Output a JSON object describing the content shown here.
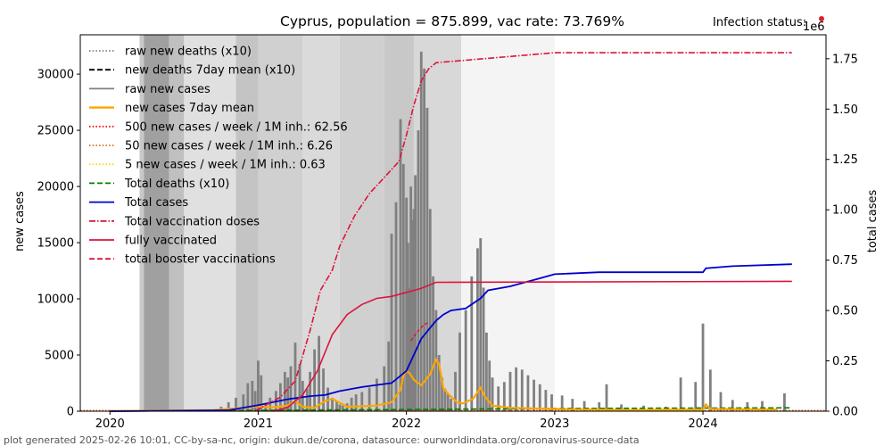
{
  "chart_data": {
    "type": "bar+line",
    "title": "Cyprus, population = 875.899, vac rate: 73.769%",
    "status_label": "Infection status:",
    "status_color": "#e0202c",
    "right_axis_multiplier": "1e6",
    "xlabel": "",
    "ylabel_left": "new cases",
    "ylabel_right": "total cases",
    "x_ticks": [
      "2020",
      "2021",
      "2022",
      "2023",
      "2024"
    ],
    "xlim": [
      2019.8,
      2024.83
    ],
    "ylim_left": [
      0,
      33500
    ],
    "ylim_right": [
      0,
      1.8688
    ],
    "y_ticks_left": [
      "0",
      "5000",
      "10000",
      "15000",
      "20000",
      "25000",
      "30000"
    ],
    "y_ticks_right": [
      "0.00",
      "0.25",
      "0.50",
      "0.75",
      "1.00",
      "1.25",
      "1.50",
      "1.75"
    ],
    "legend_position": "upper-left",
    "legend": [
      {
        "label": "raw new deaths (x10)",
        "color": "#808080",
        "style": "dotted"
      },
      {
        "label": "new deaths 7day mean (x10)",
        "color": "#000000",
        "style": "dashed"
      },
      {
        "label": "raw new cases",
        "color": "#808080",
        "style": "solid"
      },
      {
        "label": "new cases 7day mean",
        "color": "#ffa500",
        "style": "solid-thick"
      },
      {
        "label": "500 new cases / week / 1M inh.: 62.56",
        "color": "#ff0000",
        "style": "dotted"
      },
      {
        "label": "50 new cases / week / 1M inh.: 6.26",
        "color": "#d2691e",
        "style": "dotted"
      },
      {
        "label": "5 new cases / week / 1M inh.: 0.63",
        "color": "#ffd700",
        "style": "dotted"
      },
      {
        "label": "Total deaths (x10)",
        "color": "#008000",
        "style": "dashed"
      },
      {
        "label": "Total cases",
        "color": "#0000cd",
        "style": "solid"
      },
      {
        "label": "Total vaccination doses",
        "color": "#dc143c",
        "style": "dashdot"
      },
      {
        "label": "fully vaccinated",
        "color": "#dc143c",
        "style": "solid"
      },
      {
        "label": "total booster vaccinations",
        "color": "#dc143c",
        "style": "dashed"
      }
    ],
    "weekly_new_cases_bars": {
      "x": [
        2020.75,
        2020.8,
        2020.85,
        2020.9,
        2020.93,
        2020.96,
        2020.98,
        2021.0,
        2021.02,
        2021.05,
        2021.08,
        2021.12,
        2021.15,
        2021.18,
        2021.2,
        2021.22,
        2021.25,
        2021.28,
        2021.3,
        2021.33,
        2021.35,
        2021.38,
        2021.41,
        2021.44,
        2021.47,
        2021.5,
        2021.53,
        2021.55,
        2021.57,
        2021.6,
        2021.63,
        2021.66,
        2021.7,
        2021.75,
        2021.8,
        2021.85,
        2021.88,
        2021.9,
        2021.93,
        2021.96,
        2021.98,
        2022.0,
        2022.01,
        2022.02,
        2022.03,
        2022.04,
        2022.05,
        2022.06,
        2022.08,
        2022.1,
        2022.12,
        2022.14,
        2022.16,
        2022.18,
        2022.2,
        2022.22,
        2022.24,
        2022.26,
        2022.28,
        2022.3,
        2022.33,
        2022.36,
        2022.4,
        2022.44,
        2022.48,
        2022.5,
        2022.52,
        2022.54,
        2022.56,
        2022.58,
        2022.62,
        2022.66,
        2022.7,
        2022.74,
        2022.78,
        2022.82,
        2022.86,
        2022.9,
        2022.94,
        2022.98,
        2023.05,
        2023.12,
        2023.2,
        2023.3,
        2023.35,
        2023.45,
        2023.6,
        2023.75,
        2023.85,
        2023.95,
        2024.0,
        2024.05,
        2024.12,
        2024.2,
        2024.3,
        2024.4,
        2024.55
      ],
      "values": [
        400,
        800,
        1200,
        1500,
        2500,
        2700,
        1800,
        4500,
        3200,
        700,
        1200,
        1800,
        2500,
        3500,
        3000,
        4000,
        6100,
        4200,
        2700,
        2000,
        3500,
        5500,
        6700,
        3800,
        2100,
        1200,
        900,
        600,
        500,
        700,
        1200,
        1500,
        1700,
        2100,
        2900,
        4000,
        6200,
        15800,
        18600,
        26000,
        22000,
        19000,
        15000,
        11000,
        20000,
        17000,
        18000,
        21000,
        25000,
        32000,
        30500,
        27000,
        18000,
        12000,
        9000,
        5000,
        3000,
        2000,
        1500,
        1100,
        3500,
        7000,
        9000,
        12000,
        14500,
        15400,
        11000,
        7000,
        4500,
        3000,
        2200,
        2600,
        3500,
        3900,
        3700,
        3200,
        2800,
        2400,
        1900,
        1500,
        1400,
        1100,
        900,
        800,
        2400,
        600,
        500,
        400,
        3000,
        2600,
        7800,
        3700,
        1700,
        1000,
        800,
        900,
        1600
      ]
    },
    "new_cases_7day_mean": {
      "x": [
        2020.0,
        2020.7,
        2020.9,
        2021.0,
        2021.1,
        2021.2,
        2021.25,
        2021.3,
        2021.38,
        2021.45,
        2021.5,
        2021.6,
        2021.8,
        2021.9,
        2021.96,
        2021.98,
        2022.0,
        2022.02,
        2022.05,
        2022.1,
        2022.16,
        2022.2,
        2022.22,
        2022.25,
        2022.3,
        2022.34,
        2022.38,
        2022.45,
        2022.5,
        2022.53,
        2022.58,
        2022.7,
        2023.0,
        2023.5,
        2024.0,
        2024.02,
        2024.05,
        2024.5
      ],
      "values": [
        0,
        100,
        300,
        450,
        350,
        500,
        900,
        400,
        300,
        900,
        1100,
        400,
        500,
        800,
        1900,
        3200,
        3600,
        3400,
        2800,
        2300,
        3300,
        4600,
        4200,
        2000,
        1300,
        800,
        700,
        1100,
        2100,
        1300,
        500,
        300,
        200,
        100,
        150,
        600,
        200,
        150
      ]
    },
    "total_cases_millions": {
      "x": [
        2020.0,
        2020.8,
        2021.0,
        2021.2,
        2021.35,
        2021.45,
        2021.55,
        2021.7,
        2021.9,
        2022.0,
        2022.05,
        2022.1,
        2022.2,
        2022.25,
        2022.3,
        2022.4,
        2022.5,
        2022.55,
        2022.7,
        2022.9,
        2023.0,
        2023.3,
        2023.6,
        2024.0,
        2024.02,
        2024.2,
        2024.6
      ],
      "values": [
        0,
        0.005,
        0.03,
        0.06,
        0.075,
        0.08,
        0.1,
        0.12,
        0.14,
        0.2,
        0.28,
        0.36,
        0.45,
        0.48,
        0.5,
        0.51,
        0.56,
        0.6,
        0.62,
        0.66,
        0.68,
        0.69,
        0.69,
        0.69,
        0.71,
        0.72,
        0.73
      ]
    },
    "total_vaccination_doses_millions": {
      "x": [
        2020.98,
        2021.05,
        2021.15,
        2021.25,
        2021.35,
        2021.42,
        2021.5,
        2021.55,
        2021.65,
        2021.75,
        2021.85,
        2021.95,
        2022.0,
        2022.05,
        2022.1,
        2022.15,
        2022.2,
        2023.0,
        2024.6
      ],
      "values": [
        0,
        0.03,
        0.07,
        0.15,
        0.4,
        0.6,
        0.7,
        0.82,
        0.97,
        1.08,
        1.16,
        1.24,
        1.37,
        1.52,
        1.64,
        1.7,
        1.73,
        1.78,
        1.78
      ]
    },
    "fully_vaccinated_millions": {
      "x": [
        2021.1,
        2021.2,
        2021.3,
        2021.4,
        2021.5,
        2021.6,
        2021.7,
        2021.8,
        2021.9,
        2022.0,
        2022.1,
        2022.2,
        2024.6
      ],
      "values": [
        0,
        0.02,
        0.08,
        0.2,
        0.38,
        0.48,
        0.53,
        0.56,
        0.57,
        0.59,
        0.61,
        0.64,
        0.645
      ]
    },
    "total_booster_millions": {
      "x": [
        2022.03,
        2022.08,
        2022.12,
        2022.15
      ],
      "values": [
        0.35,
        0.4,
        0.43,
        0.44
      ]
    },
    "total_deaths_x10": {
      "x": [
        2020.0,
        2021.0,
        2022.0,
        2023.0,
        2024.6
      ],
      "values": [
        0,
        80,
        150,
        250,
        300
      ]
    },
    "threshold_lines": [
      {
        "value": 62.56,
        "color": "#ff0000"
      },
      {
        "value": 6.26,
        "color": "#d2691e"
      },
      {
        "value": 0.63,
        "color": "#ffd700"
      }
    ],
    "background_bands": [
      {
        "x0": 2020.2,
        "x1": 2020.23,
        "shade": "#c8c8c8"
      },
      {
        "x0": 2020.23,
        "x1": 2020.4,
        "shade": "#a0a0a0"
      },
      {
        "x0": 2020.4,
        "x1": 2020.5,
        "shade": "#c0c0c0"
      },
      {
        "x0": 2020.5,
        "x1": 2020.85,
        "shade": "#e0e0e0"
      },
      {
        "x0": 2020.85,
        "x1": 2021.0,
        "shade": "#c4c4c4"
      },
      {
        "x0": 2021.0,
        "x1": 2021.3,
        "shade": "#d0d0d0"
      },
      {
        "x0": 2021.3,
        "x1": 2021.55,
        "shade": "#dadada"
      },
      {
        "x0": 2021.55,
        "x1": 2021.85,
        "shade": "#d0d0d0"
      },
      {
        "x0": 2021.85,
        "x1": 2022.05,
        "shade": "#c8c8c8"
      },
      {
        "x0": 2022.05,
        "x1": 2022.37,
        "shade": "#d8d8d8"
      },
      {
        "x0": 2022.37,
        "x1": 2023.0,
        "shade": "#f4f4f4"
      }
    ]
  },
  "footer": "plot generated 2025-02-26 10:01, CC-by-sa-nc, origin: dukun.de/corona, datasource: ourworldindata.org/coronavirus-source-data"
}
